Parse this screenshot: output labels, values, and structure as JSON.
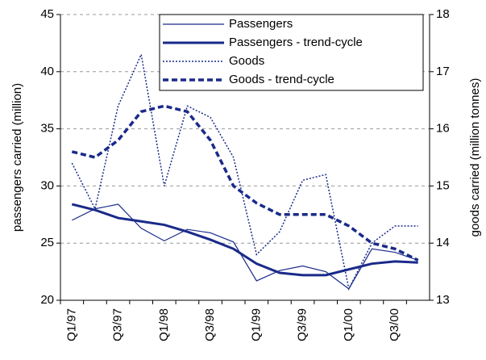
{
  "chart_data": {
    "type": "line",
    "ylabel": "passengers carried (million)",
    "y2label": "goods carried (million tonnes)",
    "categories": [
      "Q1/97",
      null,
      "Q3/97",
      null,
      "Q1/98",
      null,
      "Q3/98",
      null,
      "Q1/99",
      null,
      "Q3/99",
      null,
      "Q1/00",
      null,
      "Q3/00",
      null
    ],
    "series": [
      {
        "name": "Passengers",
        "color": "#1a2a8a",
        "style": "thin",
        "values": [
          27.0,
          28.0,
          28.4,
          26.3,
          25.2,
          26.2,
          25.9,
          25.1,
          21.7,
          22.6,
          23.0,
          22.5,
          21.0,
          24.5,
          24.2,
          23.5
        ]
      },
      {
        "name": "Passengers - trend-cycle",
        "color": "#1a2a8a",
        "style": "thick",
        "values": [
          28.4,
          27.9,
          27.2,
          26.9,
          26.6,
          26.0,
          25.3,
          24.5,
          23.2,
          22.4,
          22.2,
          22.2,
          22.7,
          23.2,
          23.4,
          23.3
        ]
      },
      {
        "name": "Goods",
        "color": "#1a2a8a",
        "style": "dotted",
        "axis": "y2",
        "values": [
          15.4,
          14.6,
          16.4,
          17.3,
          15.0,
          16.4,
          16.2,
          15.5,
          13.8,
          14.2,
          15.1,
          15.2,
          13.2,
          14.0,
          14.3,
          14.3
        ]
      },
      {
        "name": "Goods - trend-cycle",
        "color": "#1a2a8a",
        "style": "dashed",
        "axis": "y2",
        "values": [
          15.6,
          15.5,
          15.8,
          16.3,
          16.4,
          16.3,
          15.8,
          15.0,
          14.7,
          14.5,
          14.5,
          14.5,
          14.3,
          14.0,
          13.9,
          13.7
        ]
      }
    ],
    "ylim": [
      20,
      45
    ],
    "yticks": [
      20,
      25,
      30,
      35,
      40,
      45
    ],
    "y2lim": [
      13,
      18
    ],
    "y2ticks": [
      13,
      14,
      15,
      16,
      17,
      18
    ],
    "grid": true,
    "legend": "top-right"
  }
}
